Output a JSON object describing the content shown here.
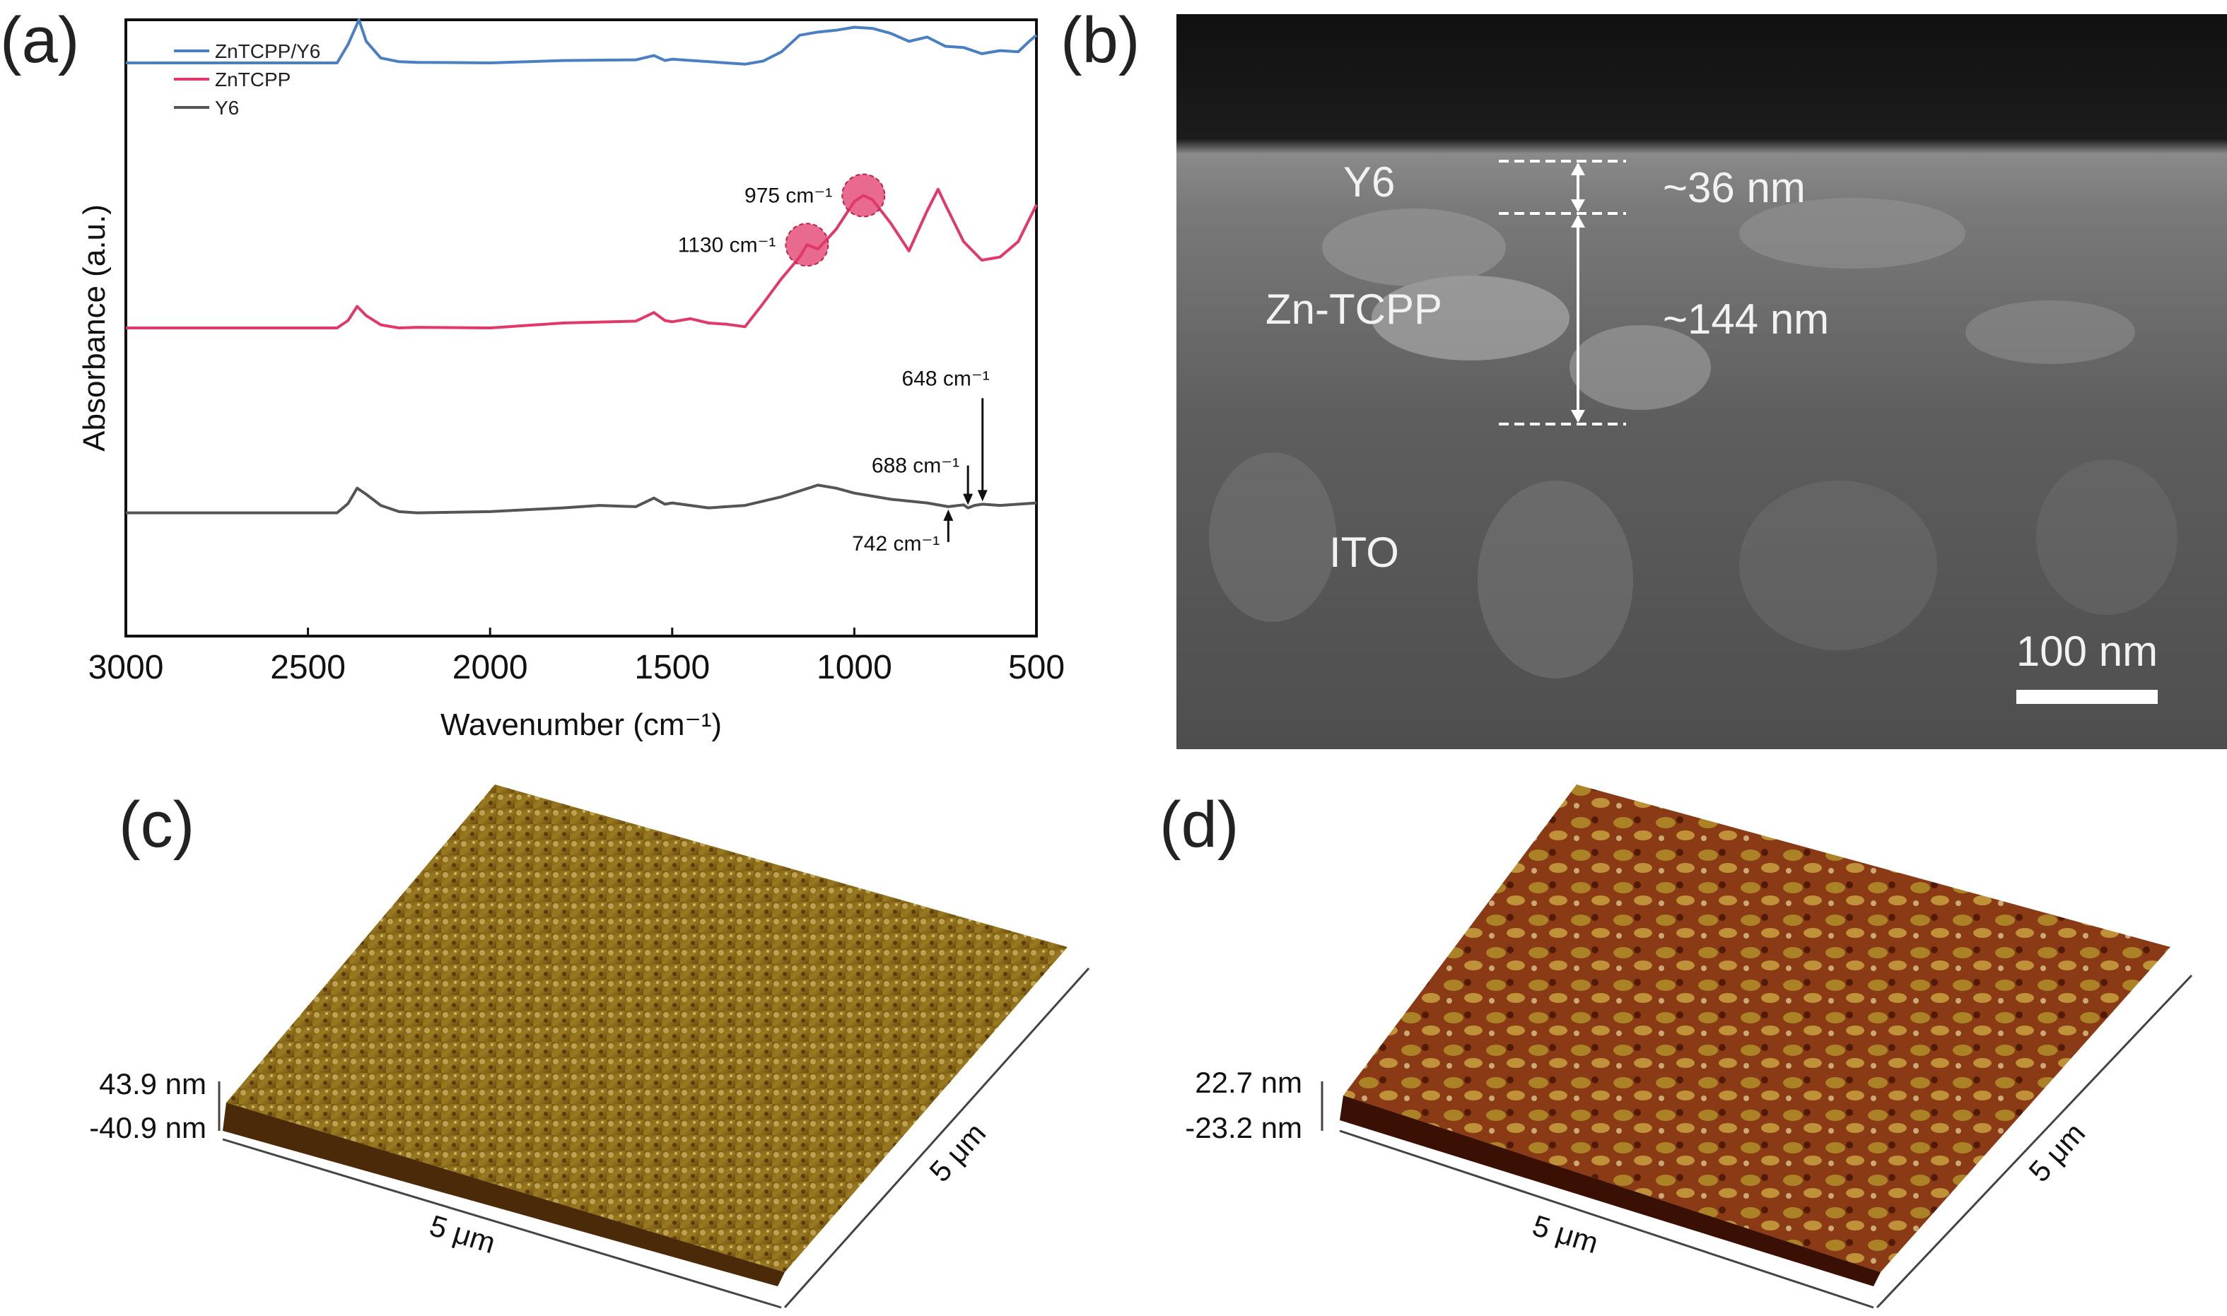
{
  "panels": {
    "a": "(a)",
    "b": "(b)",
    "c": "(c)",
    "d": "(d)"
  },
  "chart_data": {
    "type": "line",
    "title": "",
    "xlabel": "Wavenumber (cm⁻¹)",
    "ylabel": "Absorbance (a.u.)",
    "xlim": [
      3000,
      500
    ],
    "ylim": [
      0,
      1
    ],
    "xticks": [
      "3000",
      "2500",
      "2000",
      "1500",
      "1000",
      "500"
    ],
    "legend": "top-left",
    "series": [
      {
        "name": "ZnTCPP/Y6",
        "color": "#4a7fc1",
        "x": [
          3000,
          2420,
          2390,
          2360,
          2340,
          2300,
          2250,
          2200,
          2000,
          1800,
          1600,
          1550,
          1520,
          1500,
          1400,
          1300,
          1250,
          1200,
          1150,
          1100,
          1050,
          1000,
          950,
          900,
          850,
          800,
          750,
          700,
          650,
          600,
          550,
          520,
          500
        ],
        "y": [
          0.93,
          0.93,
          0.96,
          1.0,
          0.965,
          0.938,
          0.932,
          0.931,
          0.93,
          0.934,
          0.935,
          0.942,
          0.934,
          0.936,
          0.932,
          0.928,
          0.933,
          0.948,
          0.975,
          0.98,
          0.983,
          0.988,
          0.986,
          0.978,
          0.965,
          0.972,
          0.957,
          0.955,
          0.945,
          0.95,
          0.948,
          0.965,
          0.975
        ]
      },
      {
        "name": "ZnTCPP",
        "color": "#e0396a",
        "x": [
          3000,
          2420,
          2390,
          2365,
          2340,
          2300,
          2250,
          2200,
          2000,
          1800,
          1600,
          1550,
          1520,
          1500,
          1450,
          1400,
          1350,
          1300,
          1250,
          1200,
          1150,
          1130,
          1100,
          1050,
          1000,
          975,
          950,
          900,
          850,
          800,
          770,
          750,
          700,
          650,
          600,
          550,
          500
        ],
        "y": [
          0.5,
          0.5,
          0.512,
          0.535,
          0.52,
          0.505,
          0.5,
          0.501,
          0.5,
          0.508,
          0.511,
          0.525,
          0.512,
          0.51,
          0.515,
          0.508,
          0.506,
          0.502,
          0.54,
          0.58,
          0.615,
          0.635,
          0.628,
          0.66,
          0.705,
          0.715,
          0.708,
          0.67,
          0.625,
          0.69,
          0.725,
          0.7,
          0.64,
          0.61,
          0.615,
          0.64,
          0.7
        ]
      },
      {
        "name": "Y6",
        "color": "#555555",
        "x": [
          3000,
          2420,
          2390,
          2365,
          2340,
          2300,
          2250,
          2200,
          2000,
          1800,
          1700,
          1600,
          1550,
          1520,
          1500,
          1400,
          1300,
          1200,
          1100,
          1050,
          1000,
          900,
          800,
          742,
          700,
          688,
          670,
          648,
          600,
          500
        ],
        "y": [
          0.2,
          0.2,
          0.215,
          0.24,
          0.23,
          0.212,
          0.202,
          0.2,
          0.202,
          0.208,
          0.212,
          0.21,
          0.224,
          0.214,
          0.216,
          0.208,
          0.212,
          0.226,
          0.245,
          0.24,
          0.232,
          0.222,
          0.216,
          0.21,
          0.213,
          0.208,
          0.212,
          0.214,
          0.212,
          0.216
        ]
      }
    ],
    "annotations": [
      {
        "text": "975 cm⁻¹",
        "x": 975,
        "y": 0.715,
        "marker": true
      },
      {
        "text": "1130 cm⁻¹",
        "x": 1130,
        "y": 0.635,
        "marker": true
      },
      {
        "text": "648 cm⁻¹",
        "x": 648,
        "y": 0.214,
        "arrow": "down"
      },
      {
        "text": "688 cm⁻¹",
        "x": 688,
        "y": 0.208,
        "arrow": "down"
      },
      {
        "text": "742 cm⁻¹",
        "x": 742,
        "y": 0.21,
        "arrow": "up"
      }
    ]
  },
  "sem": {
    "labels": {
      "y6": "Y6",
      "zntcpp": "Zn-TCPP",
      "ito": "ITO"
    },
    "thickness": {
      "y6": "~36 nm",
      "zntcpp": "~144 nm"
    },
    "scale_bar": "100 nm"
  },
  "afm_c": {
    "z_max": "43.9 nm",
    "z_min": "-40.9 nm",
    "x_label": "5 μm",
    "y_label": "5 μm"
  },
  "afm_d": {
    "z_max": "22.7 nm",
    "z_min": "-23.2 nm",
    "x_label": "5 μm",
    "y_label": "5 μm"
  },
  "colors": {
    "afm_dark": "#5a2a0a",
    "afm_mid": "#8a6a10",
    "afm_light": "#d8c890",
    "sem_bg": "#6a6a6a"
  }
}
